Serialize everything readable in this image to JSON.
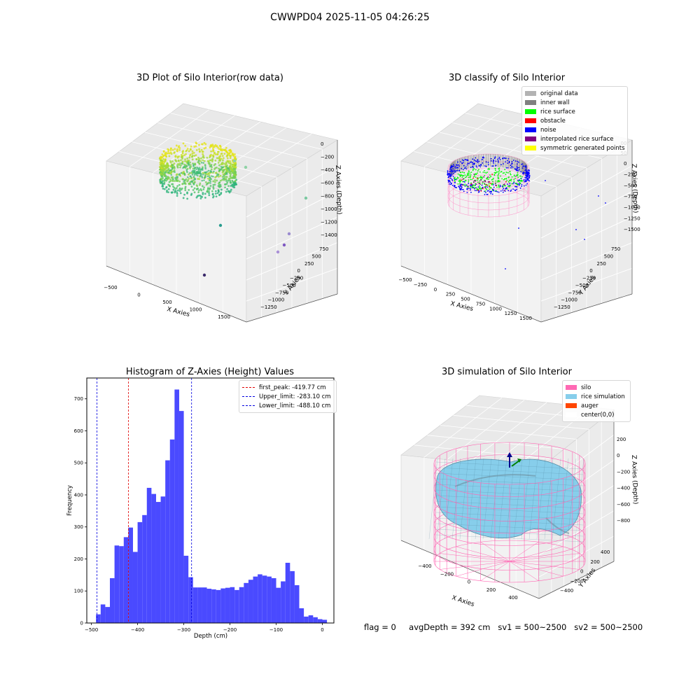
{
  "figure": {
    "title": "CWWPD04 2025-11-05 04:26:25",
    "footer": {
      "flag": "flag = 0",
      "avg_depth": "avgDepth = 392 cm",
      "sv1": "sv1 = 500~2500",
      "sv2": "sv2 = 500~2500"
    }
  },
  "chart_data": [
    {
      "type": "scatter",
      "title": "3D Plot of Silo Interior(row data)",
      "xlabel": "X Axies",
      "ylabel": "Y Axies",
      "zlabel": "Z Axies (Depth)",
      "x_ticks": [
        "−500",
        "0",
        "500",
        "1000",
        "1500"
      ],
      "y_ticks": [
        "750",
        "500",
        "250",
        "0",
        "−250",
        "−500",
        "−750",
        "−1000",
        "−1250"
      ],
      "z_ticks": [
        "0",
        "−200",
        "−400",
        "−600",
        "−800",
        "−1000",
        "−1200",
        "−1400"
      ],
      "colormap": "viridis",
      "outlier_points": [
        {
          "x": 1500,
          "y": 0,
          "z": -800,
          "color": "#7ac8a0"
        },
        {
          "x": 900,
          "y": -400,
          "z": -1200,
          "color": "#2a9d8f"
        },
        {
          "x": 1300,
          "y": -500,
          "z": -1300,
          "color": "#9a8bd0"
        },
        {
          "x": 1200,
          "y": -700,
          "z": -1350,
          "color": "#7e57c2"
        },
        {
          "x": 1400,
          "y": -300,
          "z": -1250,
          "color": "#a98fd6"
        },
        {
          "x": 1000,
          "y": -1100,
          "z": -1400,
          "color": "#3b2a6b"
        },
        {
          "x": 900,
          "y": 250,
          "z": -400,
          "color": "#8fd3a6"
        }
      ]
    },
    {
      "type": "scatter",
      "title": "3D classify of Silo Interior",
      "xlabel": "X Axies",
      "ylabel": "Y Axies",
      "zlabel": "Z Axies (Depth)",
      "x_ticks": [
        "−500",
        "−250",
        "0",
        "250",
        "500",
        "750",
        "1000",
        "1250",
        "1500"
      ],
      "y_ticks": [
        "750",
        "500",
        "250",
        "0",
        "−250",
        "−500",
        "−750",
        "−1000",
        "−1250"
      ],
      "z_ticks": [
        "0",
        "−250",
        "−500",
        "−750",
        "−1000",
        "−1250",
        "−1500"
      ],
      "z_ticks_extra": [
        "00",
        "50"
      ],
      "legend": [
        {
          "label": "original data",
          "color": "#b3b3b3"
        },
        {
          "label": "inner wall",
          "color": "#808080"
        },
        {
          "label": "rice surface",
          "color": "#00ff00"
        },
        {
          "label": "obstacle",
          "color": "#ff0000"
        },
        {
          "label": "noise",
          "color": "#0000ff"
        },
        {
          "label": "interpolated rice surface",
          "color": "#800080"
        },
        {
          "label": "symmetric generated points",
          "color": "#ffff00"
        }
      ]
    },
    {
      "type": "bar",
      "title": "Histogram of Z-Axies (Height) Values",
      "xlabel": "Depth (cm)",
      "ylabel": "Frequency",
      "xlim": [
        -510,
        25
      ],
      "ylim": [
        0,
        765
      ],
      "x_ticks": [
        -500,
        -400,
        -300,
        -200,
        -100,
        0
      ],
      "y_ticks": [
        0,
        100,
        200,
        300,
        400,
        500,
        600,
        700
      ],
      "bar_color": "#4a4aff",
      "bin_start": -490,
      "bin_width": 10,
      "values": [
        27,
        58,
        50,
        140,
        242,
        240,
        268,
        298,
        222,
        315,
        337,
        422,
        403,
        378,
        395,
        508,
        573,
        729,
        662,
        210,
        143,
        111,
        111,
        111,
        107,
        105,
        103,
        108,
        110,
        112,
        103,
        112,
        125,
        135,
        145,
        152,
        148,
        145,
        140,
        110,
        130,
        188,
        162,
        118,
        46,
        20,
        24,
        18,
        12,
        10
      ],
      "vlines": [
        {
          "x": -419.77,
          "label": "first_peak: -419.77 cm",
          "color": "#e00000"
        },
        {
          "x": -283.1,
          "label": "Upper_limit: -283.10 cm",
          "color": "#0000e0"
        },
        {
          "x": -488.1,
          "label": "Lower_limit: -488.10 cm",
          "color": "#0000e0"
        }
      ]
    },
    {
      "type": "area",
      "title": "3D simulation of Silo Interior",
      "xlabel": "X Axies",
      "ylabel": "Y Axies",
      "zlabel": "Z Axies (Depth)",
      "x_ticks": [
        "−400",
        "−200",
        "0",
        "200",
        "400"
      ],
      "y_ticks": [
        "400",
        "200",
        "0",
        "−200",
        "−400"
      ],
      "z_ticks": [
        "200",
        "0",
        "−200",
        "−400",
        "−600",
        "−800"
      ],
      "legend": [
        {
          "label": "silo",
          "color": "#ff69b4"
        },
        {
          "label": "rice simulation",
          "color": "#87ceeb"
        },
        {
          "label": "auger",
          "color": "#ff4500"
        },
        {
          "label": "center(0,0)",
          "color": "#ffffff"
        }
      ]
    }
  ]
}
